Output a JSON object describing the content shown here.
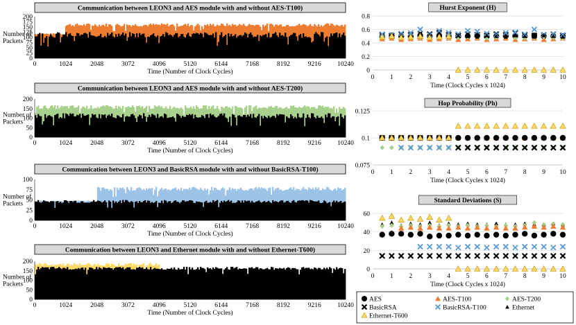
{
  "chart_data": [
    {
      "type": "bar",
      "title": "Communication between LEON3 and AES module with and without AES-T100)",
      "ylabel": "Number of Packets",
      "xlabel": "Time (Number of Clock Cycles)",
      "ylim": [
        0,
        200
      ],
      "yticks": [
        0,
        25,
        50,
        75,
        100,
        125,
        150,
        175,
        200
      ],
      "xticks": [
        0,
        1024,
        2048,
        3072,
        4096,
        5120,
        6144,
        7168,
        8192,
        9216,
        10240
      ],
      "series": [
        {
          "name": "AES-T100",
          "color": "#ed7d31",
          "segments": [
            {
              "from": 0,
              "to": 1024,
              "base": 117,
              "jitter": 4
            },
            {
              "from": 1024,
              "to": 10240,
              "base": 160,
              "jitter": 8
            }
          ]
        },
        {
          "name": "AES",
          "color": "#000000",
          "segments": [
            {
              "from": 0,
              "to": 10240,
              "base": 112,
              "jitter": 14
            }
          ]
        }
      ]
    },
    {
      "type": "bar",
      "title": "Communication between LEON3 and AES module with and without AES-T200)",
      "ylabel": "Number of Packets",
      "xlabel": "Time (Number of Clock Cycles)",
      "ylim": [
        0,
        200
      ],
      "yticks": [
        0,
        50,
        100,
        150,
        200
      ],
      "xticks": [
        0,
        1024,
        2048,
        3072,
        4096,
        5120,
        6144,
        7168,
        8192,
        9216,
        10240
      ],
      "series": [
        {
          "name": "AES-T200",
          "color": "#a9d18e",
          "segments": [
            {
              "from": 0,
              "to": 10240,
              "base": 158,
              "jitter": 10
            }
          ]
        },
        {
          "name": "AES",
          "color": "#000000",
          "segments": [
            {
              "from": 0,
              "to": 10240,
              "base": 112,
              "jitter": 14
            }
          ]
        }
      ]
    },
    {
      "type": "bar",
      "title": "Communication between LEON3 and BasicRSA module with and without BasicRSA-T100)",
      "ylabel": "Number of Packets",
      "xlabel": "Time (Number of Clock Cycles)",
      "ylim": [
        0,
        100
      ],
      "yticks": [
        0,
        25,
        50,
        75,
        100
      ],
      "xticks": [
        0,
        1024,
        2048,
        3072,
        4096,
        5120,
        6144,
        7168,
        8192,
        9216,
        10240
      ],
      "series": [
        {
          "name": "BasicRSA-T100",
          "color": "#9dc3e6",
          "segments": [
            {
              "from": 0,
              "to": 2048,
              "base": 47,
              "jitter": 2
            },
            {
              "from": 2048,
              "to": 10240,
              "base": 77,
              "jitter": 5
            }
          ]
        },
        {
          "name": "BasicRSA",
          "color": "#000000",
          "segments": [
            {
              "from": 0,
              "to": 10240,
              "base": 46,
              "jitter": 4
            }
          ]
        }
      ]
    },
    {
      "type": "bar",
      "title": "Communication between LEON3 and Ethernet module with and without Ethernet-T600)",
      "ylabel": "Number of Packets",
      "xlabel": "Time (Number of Clock Cycles)",
      "ylim": [
        0,
        200
      ],
      "yticks": [
        0,
        50,
        100,
        150,
        200
      ],
      "xticks": [
        0,
        1024,
        2048,
        3072,
        4096,
        5120,
        6144,
        7168,
        8192,
        9216,
        10240
      ],
      "series": [
        {
          "name": "Ethernet-T600",
          "color": "#ffd966",
          "segments": [
            {
              "from": 0,
              "to": 4096,
              "base": 183,
              "jitter": 8
            },
            {
              "from": 4096,
              "to": 10240,
              "base": 0,
              "jitter": 0
            }
          ]
        },
        {
          "name": "Ethernet",
          "color": "#000000",
          "segments": [
            {
              "from": 0,
              "to": 10240,
              "base": 163,
              "jitter": 8
            }
          ]
        }
      ]
    },
    {
      "type": "scatter",
      "title": "Hurst Exponent (H)",
      "xlabel": "Time (Clock Cycles x 1024)",
      "xlim": [
        0,
        10
      ],
      "ylim": [
        0,
        0.8
      ],
      "xticks": [
        0,
        1,
        2,
        3,
        4,
        5,
        6,
        7,
        8,
        9,
        10
      ],
      "yticks": [
        "0",
        "0.2",
        "0.4",
        "0.6",
        "0.8"
      ],
      "x": [
        0.5,
        1,
        1.5,
        2,
        2.5,
        3,
        3.5,
        4,
        4.5,
        5,
        5.5,
        6,
        6.5,
        7,
        7.5,
        8,
        8.5,
        9,
        9.5,
        10
      ],
      "series": [
        {
          "name": "AES",
          "values": [
            0.5,
            0.51,
            0.5,
            0.5,
            0.51,
            0.5,
            0.5,
            0.51,
            0.5,
            0.5,
            0.51,
            0.5,
            0.5,
            0.51,
            0.5,
            0.5,
            0.51,
            0.5,
            0.5,
            0.5
          ]
        },
        {
          "name": "AES-T100",
          "values": [
            0.46,
            0.47,
            0.45,
            0.46,
            0.47,
            0.45,
            0.46,
            0.47,
            0.45,
            0.46,
            0.47,
            0.45,
            0.46,
            0.47,
            0.45,
            0.46,
            0.47,
            0.45,
            0.46,
            0.47
          ]
        },
        {
          "name": "AES-T200",
          "values": [
            0.48,
            0.49,
            0.48,
            0.47,
            0.48,
            0.49,
            0.48,
            0.47,
            0.48,
            0.49,
            0.48,
            0.47,
            0.48,
            0.49,
            0.48,
            0.47,
            0.48,
            0.49,
            0.48,
            0.47
          ]
        },
        {
          "name": "BasicRSA",
          "values": [
            0.52,
            0.51,
            0.53,
            0.52,
            0.54,
            0.53,
            0.55,
            0.52,
            0.51,
            0.53,
            0.52,
            0.51,
            0.53,
            0.52,
            0.55,
            0.52,
            0.51,
            0.52,
            0.53,
            0.51
          ]
        },
        {
          "name": "BasicRSA-T100",
          "values": [
            0.53,
            0.52,
            0.54,
            0.55,
            0.6,
            0.52,
            0.58,
            0.55,
            0.53,
            0.58,
            0.57,
            0.54,
            0.52,
            0.55,
            0.56,
            0.53,
            0.6,
            0.52,
            0.53,
            0.52
          ]
        },
        {
          "name": "Ethernet",
          "values": [
            0.5,
            0.49,
            0.51,
            0.5,
            0.49,
            0.51,
            0.5,
            0.49,
            0.51,
            0.5,
            0.49,
            0.51,
            0.5,
            0.49,
            0.51,
            0.5,
            0.49,
            0.51,
            0.5,
            0.49
          ]
        },
        {
          "name": "Ethernet-T600",
          "values": [
            0.49,
            0.5,
            0.48,
            0.49,
            0.5,
            0.48,
            0.49,
            0.5,
            0.0,
            0.0,
            0.0,
            0.0,
            0.0,
            0.0,
            0.0,
            0.0,
            0.0,
            0.0,
            0.0,
            0.0
          ]
        }
      ]
    },
    {
      "type": "scatter",
      "title": "Hop Probability (Ph)",
      "xlabel": "Time (Clock Cycles x 1024)",
      "xlim": [
        0,
        10
      ],
      "ylim": [
        0.075,
        0.125
      ],
      "xticks": [
        0,
        1,
        2,
        3,
        4,
        5,
        6,
        7,
        8,
        9,
        10
      ],
      "yticks": [
        "0.075",
        "0.1",
        "0.125"
      ],
      "x": [
        0.5,
        1,
        1.5,
        2,
        2.5,
        3,
        3.5,
        4,
        4.5,
        5,
        5.5,
        6,
        6.5,
        7,
        7.5,
        8,
        8.5,
        9,
        9.5,
        10
      ],
      "series": [
        {
          "name": "AES-T200",
          "values": [
            0.091,
            0.091,
            0.091,
            0.091,
            0.091,
            0.091,
            0.091,
            0.091,
            0.091,
            0.091,
            0.091,
            0.091,
            0.091,
            0.091,
            0.091,
            0.091,
            0.091,
            0.091,
            0.091,
            0.091
          ]
        },
        {
          "name": "BasicRSA-T100",
          "values": [
            0.1,
            0.1,
            0.091,
            0.091,
            0.091,
            0.091,
            0.091,
            0.091,
            0.091,
            0.091,
            0.091,
            0.091,
            0.091,
            0.091,
            0.091,
            0.091,
            0.091,
            0.091,
            0.091,
            0.091
          ]
        },
        {
          "name": "BasicRSA",
          "values": [
            0.1,
            0.1,
            0.1,
            0.1,
            0.1,
            0.1,
            0.1,
            0.1,
            0.091,
            0.091,
            0.091,
            0.091,
            0.091,
            0.091,
            0.091,
            0.091,
            0.091,
            0.091,
            0.091,
            0.091
          ]
        },
        {
          "name": "AES-T100",
          "values": [
            0.1,
            0.1,
            0.1,
            0.1,
            0.1,
            0.1,
            0.1,
            0.1,
            0.1,
            0.1,
            0.1,
            0.1,
            0.1,
            0.1,
            0.1,
            0.1,
            0.1,
            0.1,
            0.1,
            0.1
          ]
        },
        {
          "name": "Ethernet",
          "values": [
            0.1,
            0.1,
            0.1,
            0.1,
            0.1,
            0.1,
            0.1,
            0.1,
            0.1,
            0.1,
            0.1,
            0.1,
            0.1,
            0.1,
            0.1,
            0.1,
            0.1,
            0.1,
            0.1,
            0.1
          ]
        },
        {
          "name": "AES",
          "values": [
            0.1,
            0.1,
            0.1,
            0.1,
            0.1,
            0.1,
            0.1,
            0.1,
            0.1,
            0.1,
            0.1,
            0.1,
            0.1,
            0.1,
            0.1,
            0.1,
            0.1,
            0.1,
            0.1,
            0.1
          ]
        },
        {
          "name": "Ethernet-T600",
          "values": [
            0.1,
            0.1,
            0.1,
            0.1,
            0.1,
            0.1,
            0.1,
            0.1,
            0.111,
            0.111,
            0.111,
            0.111,
            0.111,
            0.111,
            0.111,
            0.111,
            0.111,
            0.111,
            0.111,
            0.111
          ]
        }
      ]
    },
    {
      "type": "scatter",
      "title": "Standard Deviations (S)",
      "xlabel": "Time (Clock Cycles x 1024)",
      "xlim": [
        0,
        10
      ],
      "ylim": [
        0,
        60
      ],
      "xticks": [
        0,
        1,
        2,
        3,
        4,
        5,
        6,
        7,
        8,
        9,
        10
      ],
      "yticks": [
        "0",
        "20",
        "40",
        "60"
      ],
      "x": [
        0.5,
        1,
        1.5,
        2,
        2.5,
        3,
        3.5,
        4,
        4.5,
        5,
        5.5,
        6,
        6.5,
        7,
        7.5,
        8,
        8.5,
        9,
        9.5,
        10
      ],
      "series": [
        {
          "name": "Ethernet-T600",
          "values": [
            55,
            57,
            53,
            55,
            54,
            56,
            53,
            55,
            0,
            0,
            0,
            0,
            0,
            0,
            0,
            0,
            0,
            0,
            0,
            0
          ]
        },
        {
          "name": "Ethernet",
          "values": [
            48,
            50,
            47,
            49,
            48,
            50,
            47,
            49,
            48,
            49,
            48,
            48,
            49,
            48,
            48,
            49,
            48,
            48,
            49,
            48
          ]
        },
        {
          "name": "AES-T200",
          "values": [
            46,
            47,
            46,
            47,
            46,
            47,
            46,
            47,
            46,
            47,
            46,
            47,
            46,
            47,
            46,
            47,
            50,
            48,
            49,
            48
          ]
        },
        {
          "name": "AES-T100",
          "values": [
            38,
            39,
            44,
            45,
            44,
            45,
            44,
            44,
            45,
            44,
            45,
            44,
            45,
            44,
            44,
            45,
            46,
            45,
            46,
            45
          ]
        },
        {
          "name": "AES",
          "values": [
            37,
            38,
            38,
            37,
            38,
            35,
            36,
            36,
            37,
            36,
            37,
            36,
            37,
            36,
            37,
            38,
            36,
            37,
            38,
            37
          ]
        },
        {
          "name": "BasicRSA-T100",
          "values": [
            14,
            14,
            14,
            14,
            24,
            24,
            24,
            24,
            23,
            24,
            24,
            23,
            24,
            24,
            23,
            24,
            24,
            24,
            23,
            24
          ]
        },
        {
          "name": "BasicRSA",
          "values": [
            14,
            14,
            14,
            14,
            14,
            14,
            14,
            14,
            14,
            14,
            14,
            14,
            14,
            14,
            14,
            14,
            14,
            14,
            14,
            14
          ]
        }
      ]
    }
  ],
  "legend": [
    {
      "name": "AES",
      "marker": "circle",
      "color": "#000000"
    },
    {
      "name": "AES-T100",
      "marker": "triangle",
      "color": "#ed7d31"
    },
    {
      "name": "AES-T200",
      "marker": "diamond",
      "color": "#a9d18e"
    },
    {
      "name": "BasicRSA",
      "marker": "x-bold",
      "color": "#000000"
    },
    {
      "name": "BasicRSA-T100",
      "marker": "x",
      "color": "#5b9bd5"
    },
    {
      "name": "Ethernet",
      "marker": "triangle-small",
      "color": "#000000"
    },
    {
      "name": "Ethernet-T600",
      "marker": "triangle-outline",
      "color": "#ffc000"
    }
  ],
  "colors": {
    "title_bg": "#d9d9d9",
    "axis": "#000000",
    "grid": "#d9d9d9"
  }
}
